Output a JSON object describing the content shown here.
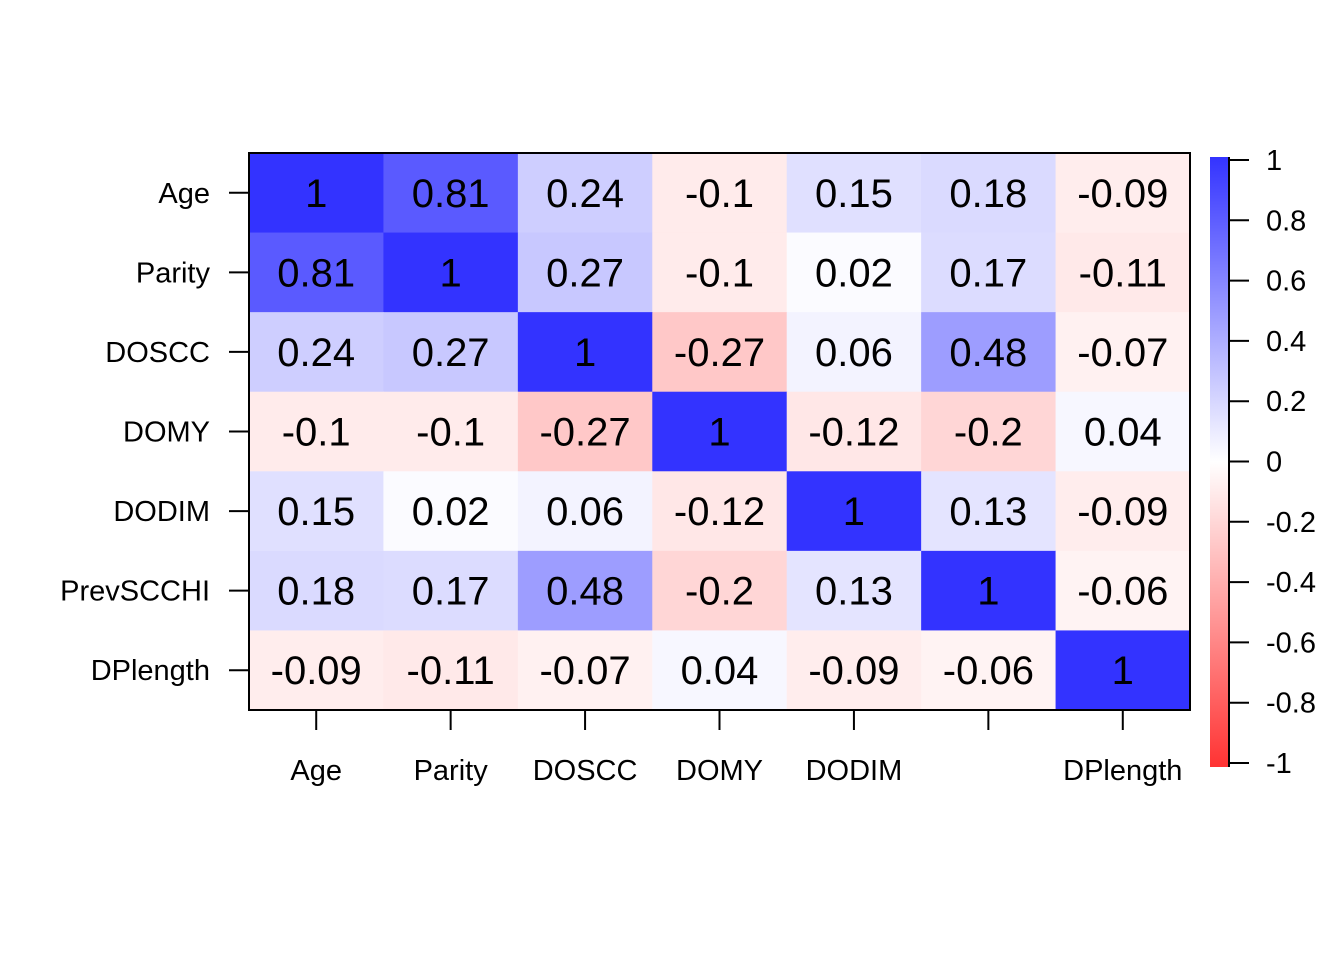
{
  "chart_data": {
    "type": "heatmap",
    "title": "",
    "xlabel": "",
    "ylabel": "",
    "row_labels": [
      "Age",
      "Parity",
      "DOSCC",
      "DOMY",
      "DODIM",
      "PrevSCCHI",
      "DPlength"
    ],
    "col_labels": [
      "Age",
      "Parity",
      "DOSCC",
      "DOMY",
      "DODIM",
      "",
      "DPlength"
    ],
    "values": [
      [
        1,
        0.81,
        0.24,
        -0.1,
        0.15,
        0.18,
        -0.09
      ],
      [
        0.81,
        1,
        0.27,
        -0.1,
        0.02,
        0.17,
        -0.11
      ],
      [
        0.24,
        0.27,
        1,
        -0.27,
        0.06,
        0.48,
        -0.07
      ],
      [
        -0.1,
        -0.1,
        -0.27,
        1,
        -0.12,
        -0.2,
        0.04
      ],
      [
        0.15,
        0.02,
        0.06,
        -0.12,
        1,
        0.13,
        -0.09
      ],
      [
        0.18,
        0.17,
        0.48,
        -0.2,
        0.13,
        1,
        -0.06
      ],
      [
        -0.09,
        -0.11,
        -0.07,
        0.04,
        -0.09,
        -0.06,
        1
      ]
    ],
    "color_scale": {
      "min": -1,
      "max": 1,
      "min_color": "#ff3333",
      "mid_color": "#ffffff",
      "max_color": "#3333ff",
      "ticks": [
        "1",
        "0.8",
        "0.6",
        "0.4",
        "0.2",
        "0",
        "-0.2",
        "-0.4",
        "-0.6",
        "-0.8",
        "-1"
      ]
    },
    "legend": "right",
    "grid": false
  }
}
